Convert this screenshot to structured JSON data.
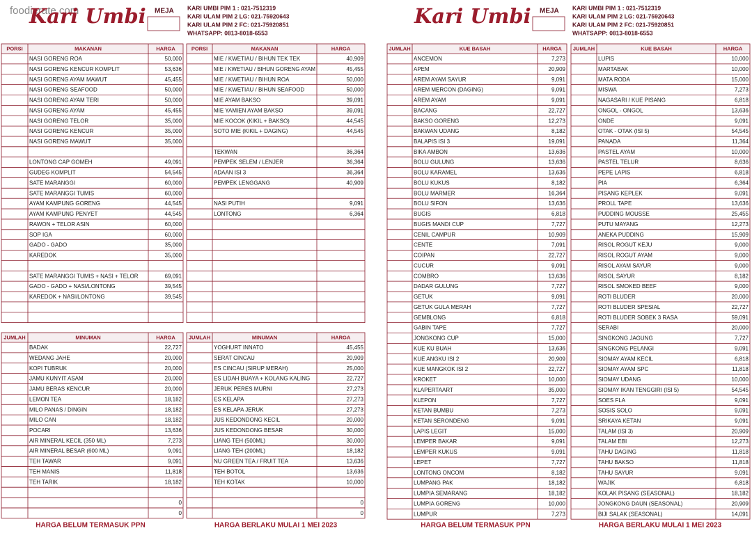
{
  "watermark": "foodierate.com",
  "pages": [
    {
      "header": {
        "logo": "Kari Umbi",
        "table_label": "MEJA",
        "contacts": [
          "KARI UMBI PIM 1 : 021-7512319",
          "KARI ULAM PIM 2 LG: 021-75920643",
          "KARI ULAM PIM 2 FC: 021-75920851",
          "WHATSAPP: 0813-8018-6553"
        ]
      },
      "tables": [
        {
          "columns": [
            "PORSI",
            "MAKANAN",
            "HARGA"
          ],
          "rows": [
            [
              "NASI GORENG ROA",
              "50,000"
            ],
            [
              "NASI GORENG KENCUR KOMPLIT",
              "53,636"
            ],
            [
              "NASI GORENG AYAM MAWUT",
              "45,455"
            ],
            [
              "NASI GORENG SEAFOOD",
              "50,000"
            ],
            [
              "NASI GORENG AYAM TERI",
              "50,000"
            ],
            [
              "NASI GORENG AYAM",
              "45,455"
            ],
            [
              "NASI GORENG TELOR",
              "35,000"
            ],
            [
              "NASI GORENG KENCUR",
              "35,000"
            ],
            [
              "NASI GORENG MAWUT",
              "35,000"
            ],
            [],
            [
              "LONTONG CAP GOMEH",
              "49,091"
            ],
            [
              "GUDEG KOMPLIT",
              "54,545"
            ],
            [
              "SATE MARANGGI",
              "60,000"
            ],
            [
              "SATE MARANGGI TUMIS",
              "60,000"
            ],
            [
              "AYAM KAMPUNG GORENG",
              "44,545"
            ],
            [
              "AYAM KAMPUNG PENYET",
              "44,545"
            ],
            [
              "RAWON + TELOR ASIN",
              "60,000"
            ],
            [
              "SOP IGA",
              "60,000"
            ],
            [
              "GADO - GADO",
              "35,000"
            ],
            [
              "KAREDOK",
              "35,000"
            ],
            [],
            [
              "SATE MARANGGI TUMIS + NASI + TELOR",
              "69,091"
            ],
            [
              "GADO - GADO + NASI/LONTONG",
              "39,545"
            ],
            [
              "KAREDOK + NASI/LONTONG",
              "39,545"
            ]
          ]
        },
        {
          "columns": [
            "PORSI",
            "MAKANAN",
            "HARGA"
          ],
          "rows": [
            [
              "MIE / KWETIAU / BIHUN TEK TEK",
              "40,909"
            ],
            [
              "MIE / KWETIAU / BIHUN GORENG AYAM",
              "45,455"
            ],
            [
              "MIE / KWETIAU / BIHUN ROA",
              "50,000"
            ],
            [
              "MIE / KWETIAU / BIHUN SEAFOOD",
              "50,000"
            ],
            [
              "MIE AYAM BAKSO",
              "39,091"
            ],
            [
              "MIE YAMIEN AYAM BAKSO",
              "39,091"
            ],
            [
              "MIE KOCOK (KIKIL + BAKSO)",
              "44,545"
            ],
            [
              "SOTO MIE (KIKIL + DAGING)",
              "44,545"
            ],
            [],
            [
              "TEKWAN",
              "36,364"
            ],
            [
              "PEMPEK SELEM / LENJER",
              "36,364"
            ],
            [
              "ADAAN ISI 3",
              "36,364"
            ],
            [
              "PEMPEK LENGGANG",
              "40,909"
            ],
            [],
            [
              "NASI PUTIH",
              "9,091"
            ],
            [
              "LONTONG",
              "6,364"
            ]
          ]
        },
        {
          "columns": [
            "JUMLAH",
            "MINUMAN",
            "HARGA"
          ],
          "rows": [
            [
              "BADAK",
              "22,727"
            ],
            [
              "WEDANG JAHE",
              "20,000"
            ],
            [
              "KOPI TUBRUK",
              "20,000"
            ],
            [
              "JAMU KUNYIT ASAM",
              "20,000"
            ],
            [
              "JAMU BERAS KENCUR",
              "20,000"
            ],
            [
              "LEMON TEA",
              "18,182"
            ],
            [
              "MILO PANAS / DINGIN",
              "18,182"
            ],
            [
              "MILO CAN",
              "18,182"
            ],
            [
              "POCARI",
              "13,636"
            ],
            [
              "AIR MINERAL KECIL (350 ML)",
              "7,273"
            ],
            [
              "AIR MINERAL BESAR (600 ML)",
              "9,091"
            ],
            [
              "TEH TAWAR",
              "9,091"
            ],
            [
              "TEH MANIS",
              "11,818"
            ],
            [
              "TEH TARIK",
              "18,182"
            ],
            [],
            [
              null,
              "0"
            ],
            [
              null,
              "0"
            ]
          ]
        },
        {
          "columns": [
            "JUMLAH",
            "MINUMAN",
            "HARGA"
          ],
          "rows": [
            [
              "YOGHURT INNATO",
              "45,455"
            ],
            [
              "SERAT CINCAU",
              "20,909"
            ],
            [
              "ES CINCAU (SIRUP MERAH)",
              "25,000"
            ],
            [
              "ES LIDAH BUAYA + KOLANG KALING",
              "22,727"
            ],
            [
              "JERUK PERES MURNI",
              "27,273"
            ],
            [
              "ES KELAPA",
              "27,273"
            ],
            [
              "ES KELAPA JERUK",
              "27,273"
            ],
            [
              "JUS KEDONDONG KECIL",
              "20,000"
            ],
            [
              "JUS KEDONDONG BESAR",
              "30,000"
            ],
            [
              "LIANG TEH (500ML)",
              "30,000"
            ],
            [
              "LIANG TEH (200ML)",
              "18,182"
            ],
            [
              "NU GREEN TEA / FRUIT TEA",
              "13,636"
            ],
            [
              "TEH BOTOL",
              "13,636"
            ],
            [
              "TEH KOTAK",
              "10,000"
            ],
            [],
            [
              null,
              "0"
            ],
            [
              null,
              "0"
            ]
          ]
        }
      ],
      "footer": [
        "HARGA BELUM TERMASUK PPN",
        "HARGA BERLAKU MULAI 1 MEI 2023"
      ]
    },
    {
      "header": {
        "logo": "Kari Umbi",
        "table_label": "MEJA",
        "contacts": [
          "KARI UMBI PIM 1 : 021-7512319",
          "KARI ULAM PIM 2 LG: 021-75920643",
          "KARI ULAM PIM 2 FC: 021-75920851",
          "WHATSAPP: 0813-8018-6553"
        ]
      },
      "tables": [
        {
          "columns": [
            "JUMLAH",
            "KUE BASAH",
            "HARGA"
          ],
          "rows": [
            [
              "ANCEMON",
              "7,273"
            ],
            [
              "APEM",
              "20,909"
            ],
            [
              "AREM AYAM SAYUR",
              "9,091"
            ],
            [
              "AREM MERCON (DAGING)",
              "9,091"
            ],
            [
              "AREM AYAM",
              "9,091"
            ],
            [
              "BACANG",
              "22,727"
            ],
            [
              "BAKSO GORENG",
              "12,273"
            ],
            [
              "BAKWAN UDANG",
              "8,182"
            ],
            [
              "BALAPIS ISI 3",
              "19,091"
            ],
            [
              "BIKA AMBON",
              "13,636"
            ],
            [
              "BOLU GULUNG",
              "13,636"
            ],
            [
              "BOLU KARAMEL",
              "13,636"
            ],
            [
              "BOLU KUKUS",
              "8,182"
            ],
            [
              "BOLU MARMER",
              "16,364"
            ],
            [
              "BOLU SIFON",
              "13,636"
            ],
            [
              "BUGIS",
              "6,818"
            ],
            [
              "BUGIS MANDI CUP",
              "7,727"
            ],
            [
              "CENIL CAMPUR",
              "10,909"
            ],
            [
              "CENTE",
              "7,091"
            ],
            [
              "COIPAN",
              "22,727"
            ],
            [
              "CUCUR",
              "9,091"
            ],
            [
              "COMBRO",
              "13,636"
            ],
            [
              "DADAR GULUNG",
              "7,727"
            ],
            [
              "GETUK",
              "9,091"
            ],
            [
              "GETUK GULA MERAH",
              "7,727"
            ],
            [
              "GEMBLONG",
              "6,818"
            ],
            [
              "GABIN TAPE",
              "7,727"
            ],
            [
              "JONGKONG CUP",
              "15,000"
            ],
            [
              "KUE KU BUAH",
              "13,636"
            ],
            [
              "KUE ANGKU ISI 2",
              "20,909"
            ],
            [
              "KUE MANGKOK ISI 2",
              "22,727"
            ],
            [
              "KROKET",
              "10,000"
            ],
            [
              "KLAPERTAART",
              "35,000"
            ],
            [
              "KLEPON",
              "7,727"
            ],
            [
              "KETAN BUMBU",
              "7,273"
            ],
            [
              "KETAN SERONDENG",
              "9,091"
            ],
            [
              "LAPIS LEGIT",
              "15,000"
            ],
            [
              "LEMPER BAKAR",
              "9,091"
            ],
            [
              "LEMPER KUKUS",
              "9,091"
            ],
            [
              "LEPET",
              "7,727"
            ],
            [
              "LONTONG ONCOM",
              "8,182"
            ],
            [
              "LUMPANG PAK",
              "18,182"
            ],
            [
              "LUMPIA SEMARANG",
              "18,182"
            ],
            [
              "LUMPIA GORENG",
              "10,000"
            ],
            [
              "LUMPUR",
              "7,273"
            ]
          ]
        },
        {
          "columns": [
            "JUMLAH",
            "KUE BASAH",
            "HARGA"
          ],
          "rows": [
            [
              "LUPIS",
              "10,000"
            ],
            [
              "MARTABAK",
              "10,000"
            ],
            [
              "MATA RODA",
              "15,000"
            ],
            [
              "MISWA",
              "7,273"
            ],
            [
              "NAGASARI / KUE PISANG",
              "6,818"
            ],
            [
              "ONGOL - ONGOL",
              "13,636"
            ],
            [
              "ONDE",
              "9,091"
            ],
            [
              "OTAK - OTAK (ISI 5)",
              "54,545"
            ],
            [
              "PANADA",
              "11,364"
            ],
            [
              "PASTEL AYAM",
              "10,000"
            ],
            [
              "PASTEL TELUR",
              "8,636"
            ],
            [
              "PEPE LAPIS",
              "6,818"
            ],
            [
              "PIA",
              "6,364"
            ],
            [
              "PISANG KEPLEK",
              "9,091"
            ],
            [
              "PROLL TAPE",
              "13,636"
            ],
            [
              "PUDDING MOUSSE",
              "25,455"
            ],
            [
              "PUTU MAYANG",
              "12,273"
            ],
            [
              "ANEKA PUDDING",
              "15,909"
            ],
            [
              "RISOL ROGUT KEJU",
              "9,000"
            ],
            [
              "RISOL ROGUT AYAM",
              "9,000"
            ],
            [
              "RISOL AYAM SAYUR",
              "9,000"
            ],
            [
              "RISOL SAYUR",
              "8,182"
            ],
            [
              "RISOL SMOKED BEEF",
              "9,000"
            ],
            [
              "ROTI BLUDER",
              "20,000"
            ],
            [
              "ROTI BLUDER SPESIAL",
              "22,727"
            ],
            [
              "ROTI BLUDER SOBEK 3 RASA",
              "59,091"
            ],
            [
              "SERABI",
              "20,000"
            ],
            [
              "SINGKONG JAGUNG",
              "7,727"
            ],
            [
              "SINGKONG PELANGI",
              "9,091"
            ],
            [
              "SIOMAY AYAM KECIL",
              "6,818"
            ],
            [
              "SIOMAY AYAM SPC",
              "11,818"
            ],
            [
              "SIOMAY UDANG",
              "10,000"
            ],
            [
              "SIOMAY IKAN TENGGIRI (ISI 5)",
              "54,545"
            ],
            [
              "SOES FLA",
              "9,091"
            ],
            [
              "SOSIS SOLO",
              "9,091"
            ],
            [
              "SRIKAYA KETAN",
              "9,091"
            ],
            [
              "TALAM (ISI 3)",
              "20,909"
            ],
            [
              "TALAM EBI",
              "12,273"
            ],
            [
              "TAHU DAGING",
              "11,818"
            ],
            [
              "TAHU BAKSO",
              "11,818"
            ],
            [
              "TAHU SAYUR",
              "9,091"
            ],
            [
              "WAJIK",
              "6,818"
            ],
            [
              "KOLAK PISANG (SEASONAL)",
              "18,182"
            ],
            [
              "JONGKONG DAUN (SEASONAL)",
              "20,909"
            ],
            [
              "BIJI SALAK (SEASONAL)",
              "14,091"
            ]
          ]
        }
      ],
      "footer": [
        "HARGA BELUM TERMASUK PPN",
        "HARGA BERLAKU MULAI 1 MEI 2023"
      ]
    }
  ]
}
